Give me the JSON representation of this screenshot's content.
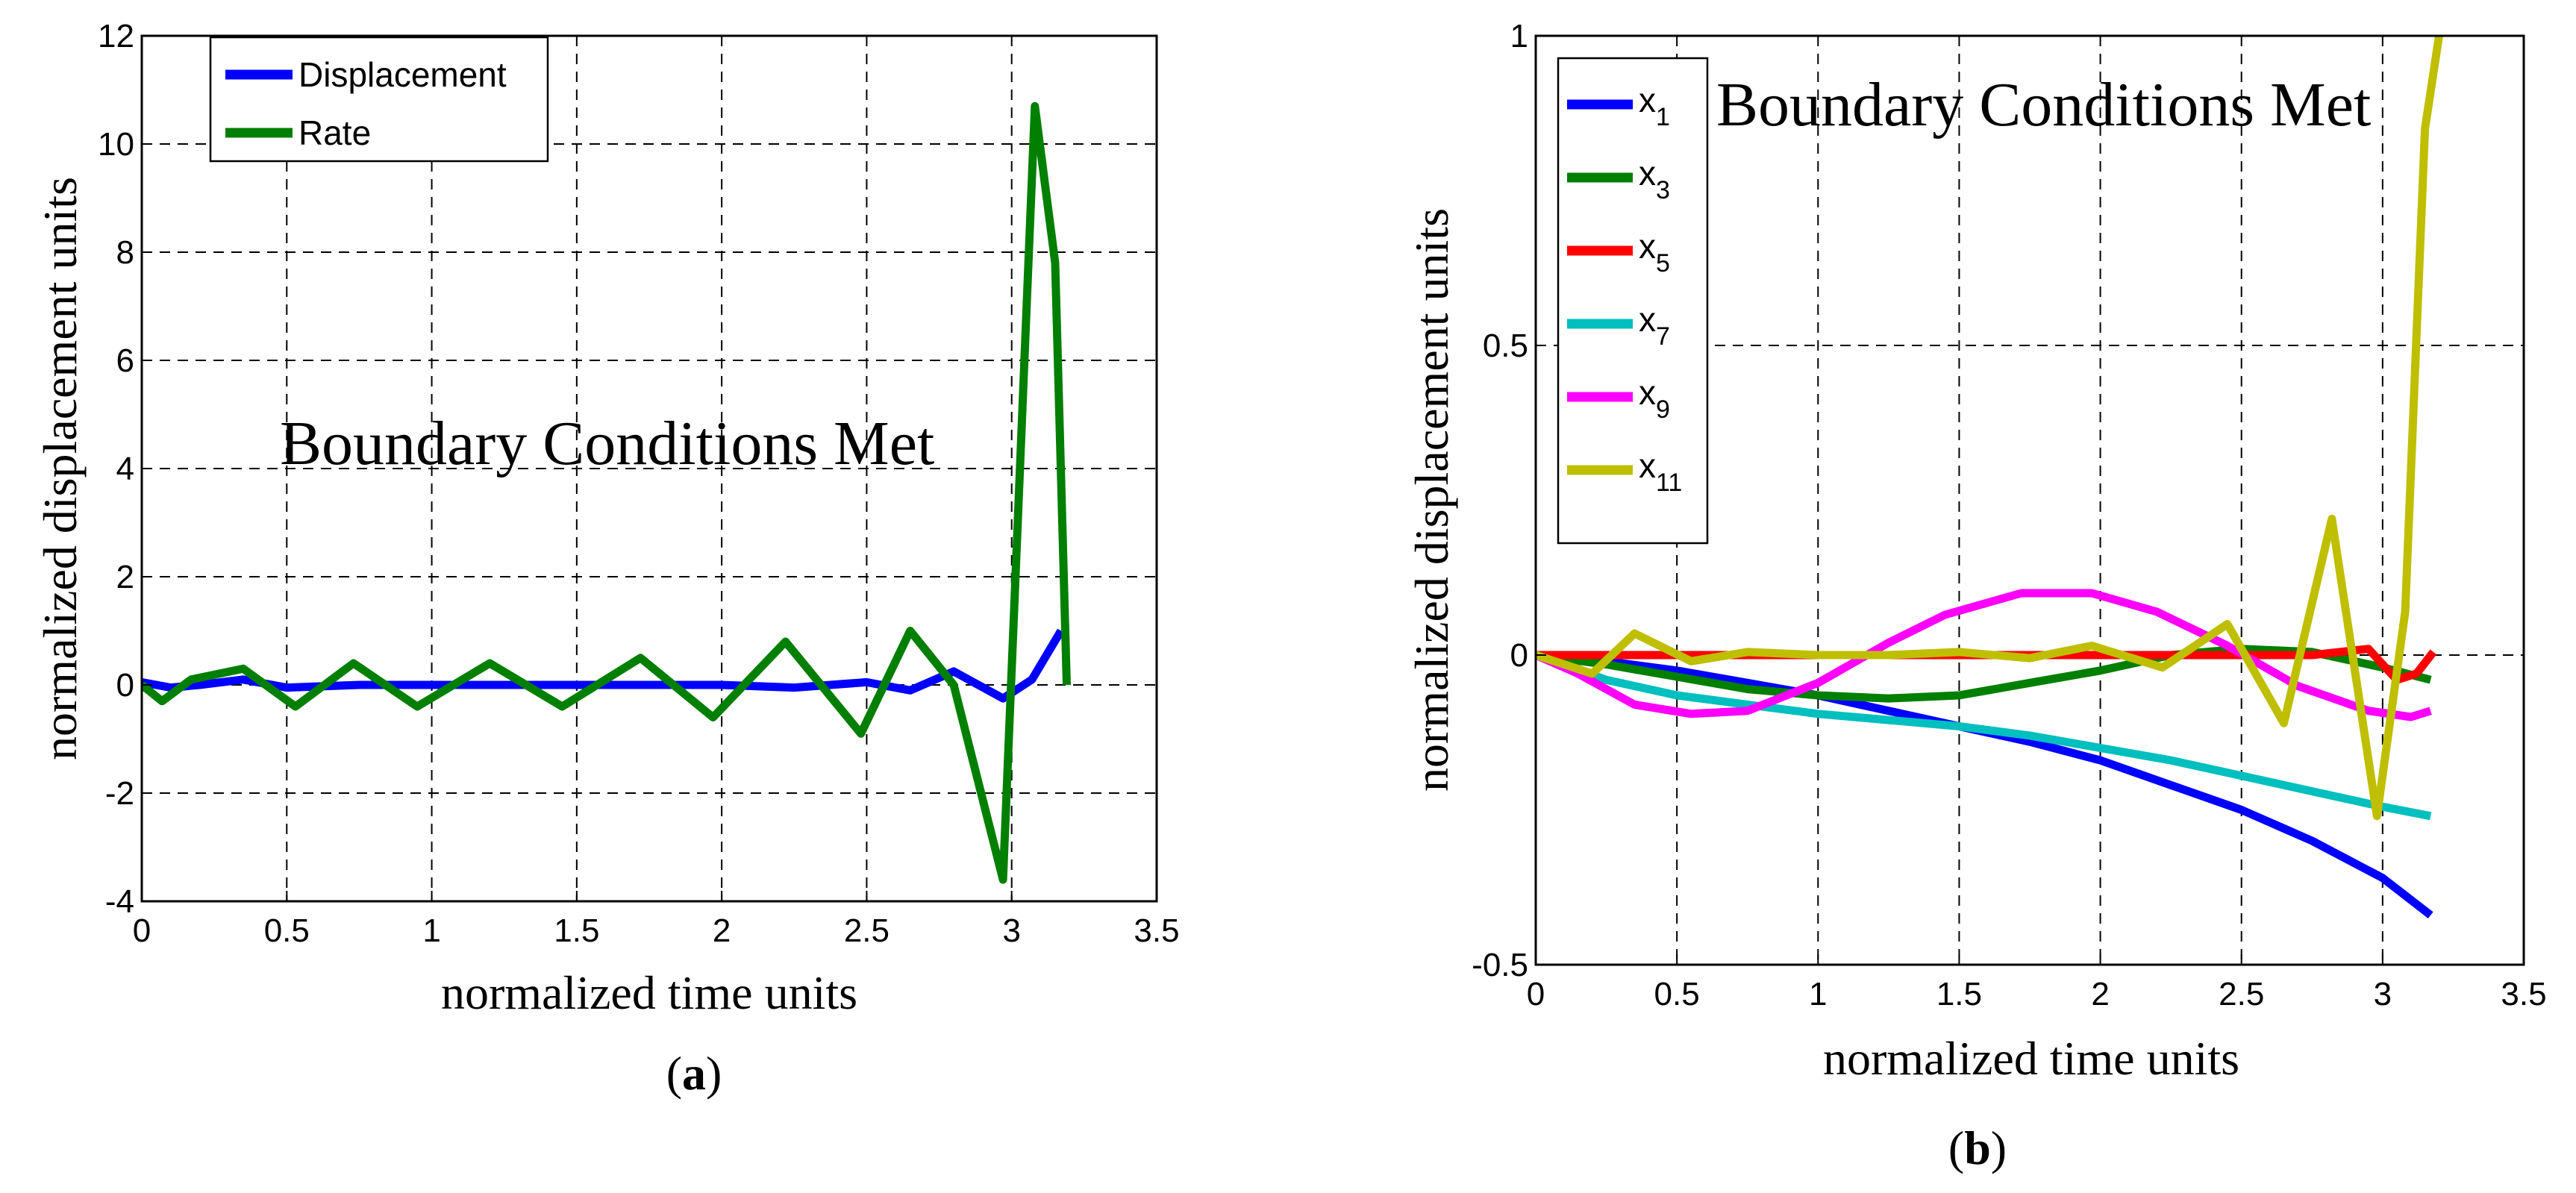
{
  "chart_data": [
    {
      "type": "line",
      "panel_label": "a",
      "xlabel": "normalized time units",
      "ylabel": "normalized displacement units",
      "annotation": "Boundary Conditions Met",
      "xlim": [
        0,
        3.5
      ],
      "ylim": [
        -4,
        12
      ],
      "xticks": [
        "0",
        "0.5",
        "1",
        "1.5",
        "2",
        "2.5",
        "3",
        "3.5"
      ],
      "yticks": [
        "-4",
        "-2",
        "0",
        "2",
        "4",
        "6",
        "8",
        "10",
        "12"
      ],
      "grid": true,
      "legend_position": "top-left",
      "series": [
        {
          "name": "Displacement",
          "color": "#0000ff",
          "x": [
            0,
            0.1,
            0.2,
            0.35,
            0.5,
            0.75,
            1.0,
            1.25,
            1.5,
            1.75,
            2.0,
            2.25,
            2.5,
            2.65,
            2.8,
            2.97,
            3.07,
            3.17
          ],
          "y": [
            0.05,
            -0.05,
            0.0,
            0.1,
            -0.05,
            0.0,
            0.0,
            0.0,
            0.0,
            0.0,
            0.0,
            -0.05,
            0.05,
            -0.1,
            0.25,
            -0.25,
            0.1,
            1.0
          ]
        },
        {
          "name": "Rate",
          "color": "#007f00",
          "x": [
            0,
            0.07,
            0.17,
            0.35,
            0.53,
            0.73,
            0.95,
            1.2,
            1.45,
            1.72,
            1.97,
            2.22,
            2.48,
            2.65,
            2.8,
            2.97,
            3.08,
            3.15,
            3.19
          ],
          "y": [
            0.0,
            -0.3,
            0.1,
            0.3,
            -0.4,
            0.4,
            -0.4,
            0.4,
            -0.4,
            0.5,
            -0.6,
            0.8,
            -0.9,
            1.0,
            0.0,
            -3.6,
            10.7,
            7.8,
            0.0
          ]
        }
      ]
    },
    {
      "type": "line",
      "panel_label": "b",
      "xlabel": "normalized time units",
      "ylabel": "normalized displacement units",
      "annotation": "Boundary Conditions Met",
      "xlim": [
        0,
        3.5
      ],
      "ylim": [
        -0.5,
        1
      ],
      "xticks": [
        "0",
        "0.5",
        "1",
        "1.5",
        "2",
        "2.5",
        "3",
        "3.5"
      ],
      "yticks": [
        "-0.5",
        "0",
        "0.5",
        "1"
      ],
      "grid": true,
      "legend_position": "top-left",
      "series": [
        {
          "name": "x",
          "sub": "1",
          "color": "#0000ff",
          "x": [
            0,
            0.25,
            0.5,
            0.75,
            1.0,
            1.25,
            1.5,
            1.75,
            2.0,
            2.25,
            2.5,
            2.75,
            3.0,
            3.17
          ],
          "y": [
            0.0,
            -0.01,
            -0.025,
            -0.045,
            -0.065,
            -0.09,
            -0.115,
            -0.14,
            -0.17,
            -0.21,
            -0.25,
            -0.3,
            -0.36,
            -0.42
          ]
        },
        {
          "name": "x",
          "sub": "3",
          "color": "#007f00",
          "x": [
            0,
            0.25,
            0.5,
            0.75,
            1.0,
            1.25,
            1.5,
            1.75,
            2.0,
            2.25,
            2.5,
            2.75,
            3.0,
            3.17
          ],
          "y": [
            0.0,
            -0.015,
            -0.035,
            -0.055,
            -0.065,
            -0.07,
            -0.065,
            -0.045,
            -0.025,
            0.0,
            0.01,
            0.005,
            -0.02,
            -0.04
          ]
        },
        {
          "name": "x",
          "sub": "5",
          "color": "#ff0000",
          "x": [
            0,
            0.25,
            0.5,
            0.75,
            1.0,
            1.25,
            1.5,
            1.75,
            2.0,
            2.25,
            2.5,
            2.75,
            2.95,
            3.05,
            3.12,
            3.18
          ],
          "y": [
            0.0,
            0.0,
            0.0,
            0.0,
            0.0,
            0.0,
            0.0,
            0.0,
            0.0,
            0.0,
            0.0,
            0.0,
            0.01,
            -0.04,
            -0.03,
            0.005
          ]
        },
        {
          "name": "x",
          "sub": "7",
          "color": "#00bfbf",
          "x": [
            0,
            0.25,
            0.5,
            0.75,
            1.0,
            1.25,
            1.5,
            1.75,
            2.0,
            2.25,
            2.5,
            2.75,
            3.0,
            3.17
          ],
          "y": [
            0.0,
            -0.04,
            -0.065,
            -0.08,
            -0.095,
            -0.105,
            -0.115,
            -0.13,
            -0.15,
            -0.17,
            -0.195,
            -0.22,
            -0.245,
            -0.26
          ]
        },
        {
          "name": "x",
          "sub": "9",
          "color": "#ff00ff",
          "x": [
            0,
            0.15,
            0.35,
            0.55,
            0.75,
            1.0,
            1.25,
            1.45,
            1.72,
            1.97,
            2.2,
            2.45,
            2.7,
            2.95,
            3.1,
            3.17
          ],
          "y": [
            0.0,
            -0.03,
            -0.08,
            -0.095,
            -0.09,
            -0.045,
            0.02,
            0.065,
            0.1,
            0.1,
            0.07,
            0.015,
            -0.05,
            -0.09,
            -0.1,
            -0.09
          ]
        },
        {
          "name": "x",
          "sub": "11",
          "color": "#bfbf00",
          "x": [
            0,
            0.2,
            0.35,
            0.55,
            0.75,
            1.0,
            1.25,
            1.5,
            1.75,
            1.97,
            2.22,
            2.45,
            2.65,
            2.82,
            2.98,
            3.08,
            3.15,
            3.2
          ],
          "y": [
            0.0,
            -0.03,
            0.035,
            -0.01,
            0.005,
            0.0,
            0.0,
            0.005,
            -0.005,
            0.015,
            -0.02,
            0.05,
            -0.11,
            0.22,
            -0.26,
            0.07,
            0.85,
            1.0
          ]
        }
      ]
    }
  ]
}
